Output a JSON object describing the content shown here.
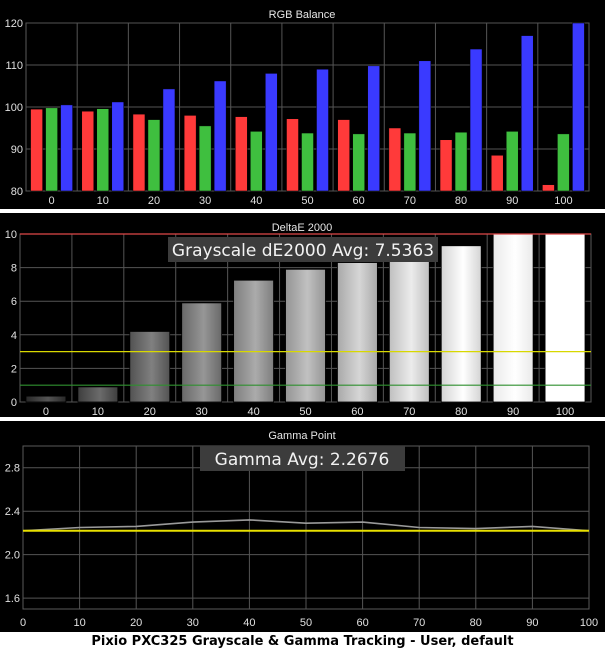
{
  "caption": "Pixio PXC325 Grayscale & Gamma Tracking - User, default",
  "chart_data": [
    {
      "type": "bar",
      "title": "RGB Balance",
      "categories": [
        "0",
        "10",
        "20",
        "30",
        "40",
        "50",
        "60",
        "70",
        "80",
        "90",
        "100"
      ],
      "ylim": [
        80,
        120
      ],
      "yticks": [
        80,
        90,
        100,
        110,
        120
      ],
      "grid": true,
      "series": [
        {
          "color": "#ff3a3a",
          "values": [
            99.5,
            99.0,
            98.3,
            98.0,
            97.7,
            97.2,
            97.0,
            95.0,
            92.2,
            88.5,
            81.5
          ]
        },
        {
          "color": "#3fbf3f",
          "values": [
            99.8,
            99.6,
            97.0,
            95.5,
            94.2,
            93.8,
            93.6,
            93.8,
            94.0,
            94.2,
            93.6
          ]
        },
        {
          "color": "#3a3aff",
          "values": [
            100.5,
            101.2,
            104.3,
            106.2,
            108.0,
            109.0,
            109.8,
            111.0,
            113.8,
            117.0,
            120.0
          ]
        }
      ]
    },
    {
      "type": "bar",
      "title": "DeltaE 2000",
      "annotation": "Grayscale dE2000 Avg: 7.5363",
      "categories": [
        "0",
        "10",
        "20",
        "30",
        "40",
        "50",
        "60",
        "70",
        "80",
        "90",
        "100"
      ],
      "ylim": [
        0,
        10
      ],
      "yticks": [
        0,
        2,
        4,
        6,
        8,
        10
      ],
      "grid": true,
      "values": [
        0.35,
        0.9,
        4.2,
        5.9,
        7.25,
        7.9,
        8.3,
        8.6,
        9.3,
        10.0,
        10.0
      ],
      "reference_lines": [
        {
          "value": 10,
          "color": "#e04848"
        },
        {
          "value": 3,
          "color": "#d8d800"
        },
        {
          "value": 1,
          "color": "#2f8f2f"
        }
      ]
    },
    {
      "type": "line",
      "title": "Gamma Point",
      "annotation": "Gamma Avg: 2.2676",
      "x": [
        0,
        10,
        20,
        30,
        40,
        50,
        60,
        70,
        80,
        90,
        100
      ],
      "xticks": [
        0,
        10,
        20,
        30,
        40,
        50,
        60,
        70,
        80,
        90,
        100
      ],
      "ylim": [
        1.5,
        3.0
      ],
      "yticks": [
        1.6,
        2.0,
        2.4,
        2.8
      ],
      "grid": true,
      "series": [
        {
          "color": "#9a9a9a",
          "values": [
            2.22,
            2.25,
            2.26,
            2.3,
            2.32,
            2.29,
            2.3,
            2.25,
            2.24,
            2.26,
            2.22
          ]
        },
        {
          "color": "#e8e000",
          "values": [
            2.22,
            2.22,
            2.22,
            2.22,
            2.22,
            2.22,
            2.22,
            2.22,
            2.22,
            2.22,
            2.22
          ]
        }
      ]
    }
  ]
}
